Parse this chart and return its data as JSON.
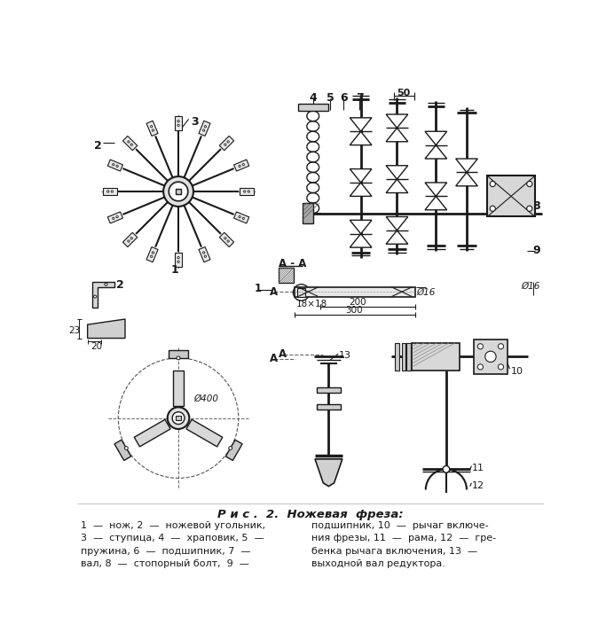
{
  "title": "Р и с .  2.  Ножевая  фреза:",
  "caption_left": "1  —  нож, 2  —  ножевой угольник,\n3  —  ступица, 4  —  храповик, 5  —\nпружина, 6  —  подшипник, 7  —\nвал, 8  —  стопорный болт,  9  —",
  "caption_right": "подшипник, 10  —  рычаг включе-\nния фрезы, 11  —  рама, 12  —  гре-\nбенка рычага включения, 13  —\nвыходной вал редуктора.",
  "bg_color": "#ffffff",
  "line_color": "#1a1a1a",
  "text_color": "#1a1a1a"
}
